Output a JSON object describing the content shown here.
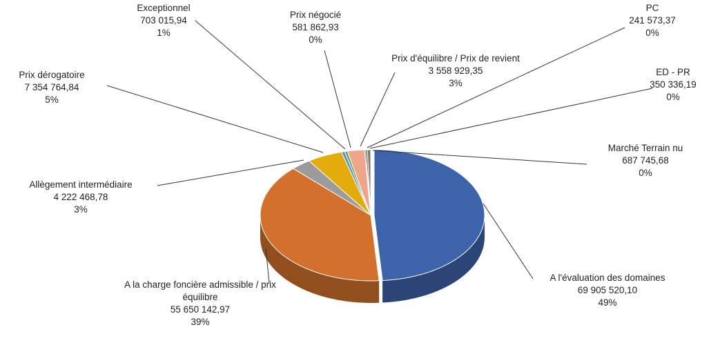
{
  "chart_data": {
    "type": "pie",
    "categories": [
      "A l'évaluation des domaines",
      "A la charge foncière admissible / prix équilibre",
      "Allègement intermédiaire",
      "Prix dérogatoire",
      "Exceptionnel",
      "Prix négocié",
      "Prix d'équilibre / Prix de revient",
      "PC",
      "ED - PR",
      "Marché Terrain nu"
    ],
    "values": [
      69905520.1,
      55650142.97,
      4222468.78,
      7354764.84,
      703015.94,
      581862.93,
      3558929.35,
      241573.37,
      350336.19,
      687745.68
    ],
    "value_labels": [
      "69 905 520,10",
      "55 650 142,97",
      "4 222 468,78",
      "7 354 764,84",
      "703 015,94",
      "581 862,93",
      "3 558 929,35",
      "241 573,37",
      "350 336,19",
      "687 745,68"
    ],
    "percent_labels": [
      "49%",
      "39%",
      "3%",
      "5%",
      "1%",
      "0%",
      "3%",
      "0%",
      "0%",
      "0%"
    ],
    "colors": [
      "#3d63ab",
      "#d2702c",
      "#9b9b9b",
      "#e3ab0b",
      "#5b8fd0",
      "#6aa84f",
      "#eea58a",
      "#2f4f86",
      "#8a4a22",
      "#7a7a7a"
    ]
  }
}
